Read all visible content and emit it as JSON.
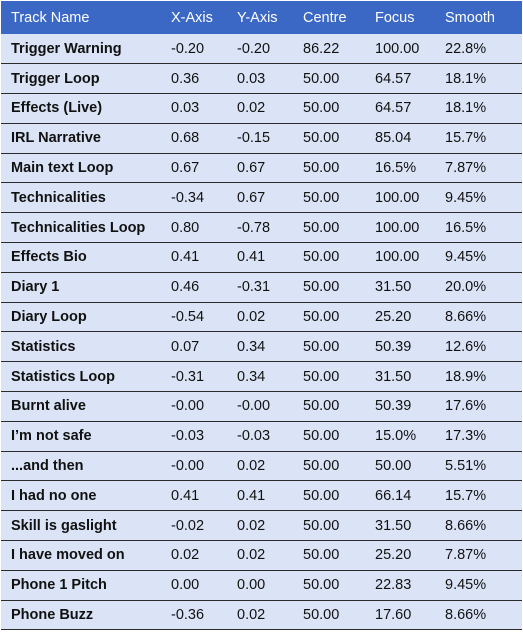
{
  "table": {
    "headers": [
      "Track Name",
      "X-Axis",
      "Y-Axis",
      "Centre",
      "Focus",
      "Smooth"
    ],
    "rows": [
      [
        "Trigger Warning",
        "-0.20",
        "-0.20",
        "86.22",
        "100.00",
        "22.8%"
      ],
      [
        "Trigger Loop",
        "0.36",
        "0.03",
        "50.00",
        "64.57",
        "18.1%"
      ],
      [
        "Effects (Live)",
        "0.03",
        "0.02",
        "50.00",
        "64.57",
        "18.1%"
      ],
      [
        "IRL Narrative",
        "0.68",
        "-0.15",
        "50.00",
        "85.04",
        "15.7%"
      ],
      [
        "Main text Loop",
        "0.67",
        "0.67",
        "50.00",
        "16.5%",
        "7.87%"
      ],
      [
        "Technicalities",
        "-0.34",
        "0.67",
        "50.00",
        "100.00",
        "9.45%"
      ],
      [
        "Technicalities Loop",
        "0.80",
        "-0.78",
        "50.00",
        "100.00",
        "16.5%"
      ],
      [
        "Effects Bio",
        "0.41",
        "0.41",
        "50.00",
        "100.00",
        "9.45%"
      ],
      [
        "Diary 1",
        "0.46",
        "-0.31",
        "50.00",
        "31.50",
        "20.0%"
      ],
      [
        "Diary Loop",
        "-0.54",
        "0.02",
        "50.00",
        "25.20",
        "8.66%"
      ],
      [
        "Statistics",
        "0.07",
        "0.34",
        "50.00",
        "50.39",
        "12.6%"
      ],
      [
        "Statistics Loop",
        "-0.31",
        "0.34",
        "50.00",
        "31.50",
        "18.9%"
      ],
      [
        "Burnt alive",
        "-0.00",
        "-0.00",
        "50.00",
        "50.39",
        "17.6%"
      ],
      [
        "I’m not safe",
        "-0.03",
        "-0.03",
        "50.00",
        "15.0%",
        "17.3%"
      ],
      [
        "...and then",
        "-0.00",
        "0.02",
        "50.00",
        "50.00",
        "5.51%"
      ],
      [
        "I had no one",
        "0.41",
        "0.41",
        "50.00",
        "66.14",
        "15.7%"
      ],
      [
        "Skill is gaslight",
        "-0.02",
        "0.02",
        "50.00",
        "31.50",
        "8.66%"
      ],
      [
        "I have moved on",
        "0.02",
        "0.02",
        "50.00",
        "25.20",
        "7.87%"
      ],
      [
        "Phone 1 Pitch",
        "0.00",
        "0.00",
        "50.00",
        "22.83",
        "9.45%"
      ],
      [
        "Phone Buzz",
        "-0.36",
        "0.02",
        "50.00",
        "17.60",
        "8.66%"
      ]
    ]
  },
  "colors": {
    "header_bg": "#3b68c4",
    "header_text": "#ffffff",
    "row_bg": "#dbe4f6",
    "row_border": "#2a2a2a"
  }
}
